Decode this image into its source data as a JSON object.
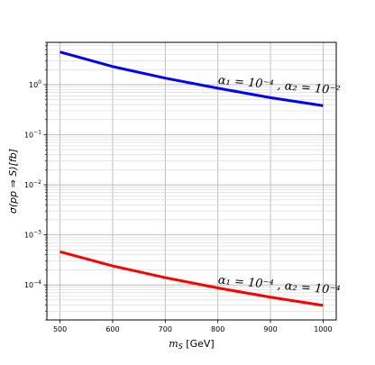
{
  "chart_data": {
    "type": "line",
    "xlabel_main": "m",
    "xlabel_sub": "S",
    "xlabel_unit": " [GeV]",
    "ylabel": "σ(pp ⇒ S)[fb]",
    "xlim": [
      475,
      1025
    ],
    "ylim": [
      2e-05,
      7
    ],
    "yscale": "log",
    "grid": true,
    "xticks": [
      {
        "value": 500,
        "label": "500"
      },
      {
        "value": 600,
        "label": "600"
      },
      {
        "value": 700,
        "label": "700"
      },
      {
        "value": 800,
        "label": "800"
      },
      {
        "value": 900,
        "label": "900"
      },
      {
        "value": 1000,
        "label": "1000"
      }
    ],
    "yticks": [
      {
        "value": 1,
        "base": "10",
        "exp": "0"
      },
      {
        "value": 0.1,
        "base": "10",
        "exp": "−1"
      },
      {
        "value": 0.01,
        "base": "10",
        "exp": "−2"
      },
      {
        "value": 0.001,
        "base": "10",
        "exp": "−3"
      },
      {
        "value": 0.0001,
        "base": "10",
        "exp": "−4"
      }
    ],
    "series": [
      {
        "color": "#0000ff",
        "x": [
          500,
          600,
          700,
          800,
          900,
          1000
        ],
        "y": [
          4.5,
          2.3,
          1.35,
          0.85,
          0.55,
          0.38
        ]
      },
      {
        "color": "#ff0000",
        "x": [
          500,
          600,
          700,
          800,
          900,
          1000
        ],
        "y": [
          0.00046,
          0.00024,
          0.00014,
          8.7e-05,
          5.7e-05,
          3.9e-05
        ]
      }
    ],
    "annotations": [
      {
        "x": 800,
        "y": 1.05,
        "text": "α₁ = 10⁻⁴ , α₂ = 10⁻²"
      },
      {
        "x": 800,
        "y": 0.000107,
        "text": "α₁ = 10⁻⁴ , α₂ = 10⁻⁴"
      }
    ]
  }
}
